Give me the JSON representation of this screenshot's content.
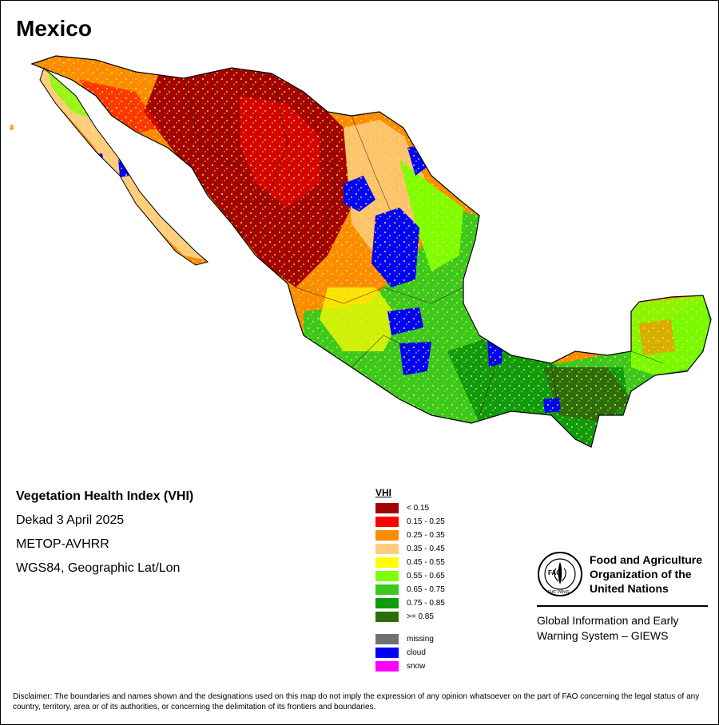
{
  "title": "Mexico",
  "info": {
    "main_title": "Vegetation Health Index (VHI)",
    "date": "Dekad 3 April 2025",
    "sensor": "METOP-AVHRR",
    "projection": "WGS84, Geographic Lat/Lon"
  },
  "legend": {
    "title": "VHI",
    "classes": [
      {
        "label": "< 0.15",
        "color": "#a50000"
      },
      {
        "label": "0.15 - 0.25",
        "color": "#ff0000"
      },
      {
        "label": "0.25 - 0.35",
        "color": "#ff8c00"
      },
      {
        "label": "0.35 - 0.45",
        "color": "#ffcc80"
      },
      {
        "label": "0.45 - 0.55",
        "color": "#ffff00"
      },
      {
        "label": "0.55 - 0.65",
        "color": "#7fff00"
      },
      {
        "label": "0.65 - 0.75",
        "color": "#3cc81e"
      },
      {
        "label": "0.75 - 0.85",
        "color": "#0f9b0f"
      },
      {
        "label": ">= 0.85",
        "color": "#2d6e0a"
      }
    ],
    "special": [
      {
        "label": "missing",
        "color": "#707070"
      },
      {
        "label": "cloud",
        "color": "#0000ff"
      },
      {
        "label": "snow",
        "color": "#ff00ff"
      }
    ]
  },
  "fao": {
    "logo_text": "FAO",
    "logo_motto": "FIAT PANIS",
    "org_line1": "Food and Agriculture",
    "org_line2": "Organization of the",
    "org_line3": "United Nations",
    "system_line1": "Global Information and Early",
    "system_line2": "Warning System – GIEWS"
  },
  "disclaimer": "Disclaimer: The boundaries and names shown and the designations used on this map do not imply the expression of any opinion whatsoever on the part of FAO concerning the legal status of any country, territory, area or of its authorities, or concerning the delimitation of its frontiers and boundaries."
}
